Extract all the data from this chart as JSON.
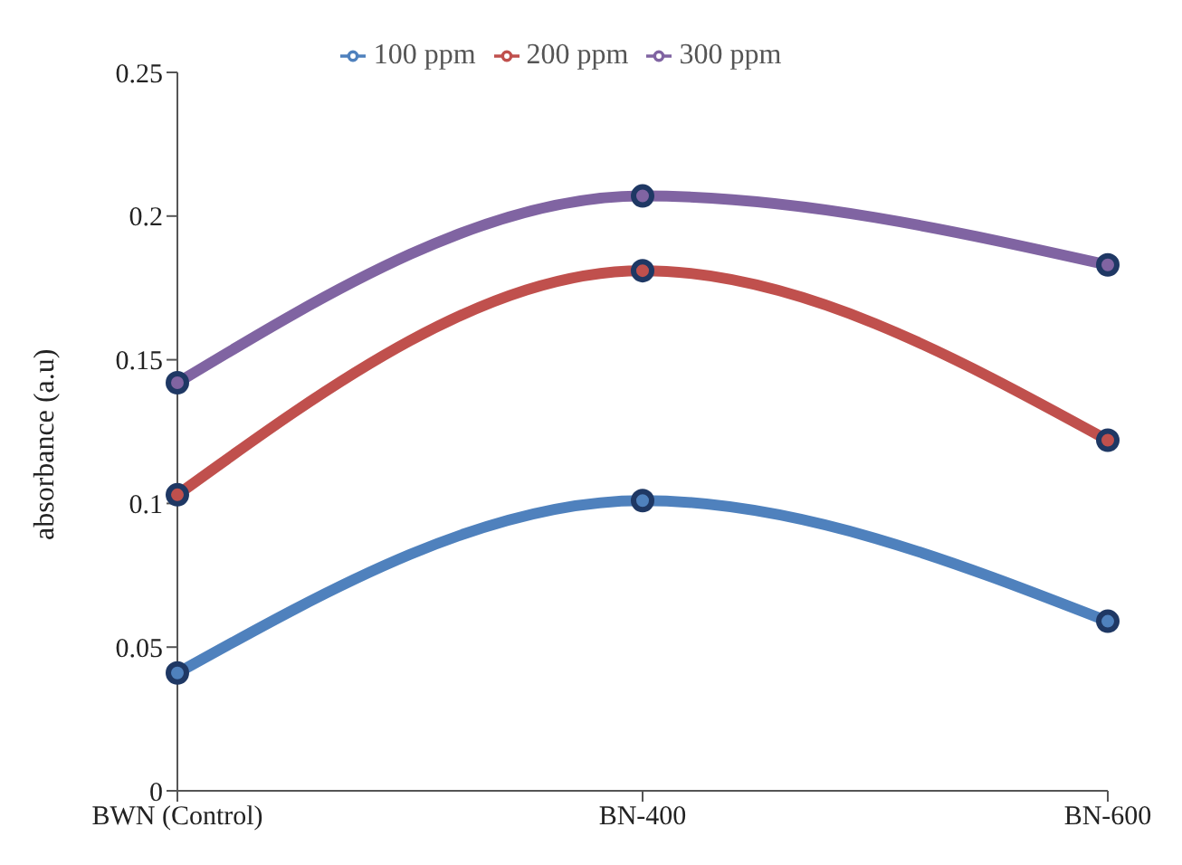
{
  "chart_data": {
    "type": "line",
    "ylabel": "absorbance (a.u)",
    "categories": [
      "BWN (Control)",
      "BN-400",
      "BN-600"
    ],
    "series": [
      {
        "name": "100 ppm",
        "color": "#4f81bd",
        "values": [
          0.041,
          0.101,
          0.059
        ]
      },
      {
        "name": "200 ppm",
        "color": "#c0504d",
        "values": [
          0.103,
          0.181,
          0.122
        ]
      },
      {
        "name": "300 ppm",
        "color": "#8064a2",
        "values": [
          0.142,
          0.207,
          0.183
        ]
      }
    ],
    "ylim": [
      0,
      0.25
    ],
    "yticks": [
      0,
      0.05,
      0.1,
      0.15,
      0.2,
      0.25
    ],
    "grid": false,
    "legend": "top",
    "marker": "circle"
  }
}
